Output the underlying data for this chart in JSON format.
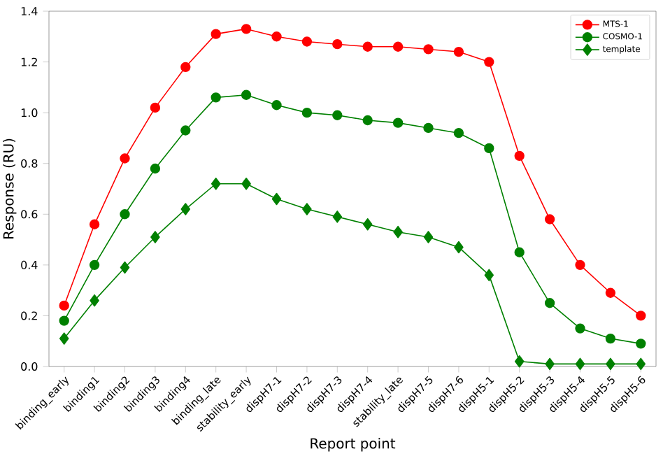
{
  "chart_data": {
    "type": "line",
    "xlabel": "Report point",
    "ylabel": "Response (RU)",
    "categories": [
      "binding_early",
      "binding1",
      "binding2",
      "binding3",
      "binding4",
      "binding_late",
      "stability_early",
      "dispH7-1",
      "dispH7-2",
      "dispH7-3",
      "dispH7-4",
      "stability_late",
      "dispH7-5",
      "dispH7-6",
      "dispH5-1",
      "dispH5-2",
      "dispH5-3",
      "dispH5-4",
      "dispH5-5",
      "dispH5-6"
    ],
    "series": [
      {
        "name": "MTS-1",
        "color": "#ff0000",
        "marker": "circle",
        "values": [
          0.24,
          0.56,
          0.82,
          1.02,
          1.18,
          1.31,
          1.33,
          1.3,
          1.28,
          1.27,
          1.26,
          1.26,
          1.25,
          1.24,
          1.2,
          0.83,
          0.58,
          0.4,
          0.29,
          0.2
        ]
      },
      {
        "name": "COSMO-1",
        "color": "#008000",
        "marker": "circle",
        "values": [
          0.18,
          0.4,
          0.6,
          0.78,
          0.93,
          1.06,
          1.07,
          1.03,
          1.0,
          0.99,
          0.97,
          0.96,
          0.94,
          0.92,
          0.86,
          0.45,
          0.25,
          0.15,
          0.11,
          0.09
        ]
      },
      {
        "name": "template",
        "color": "#008000",
        "marker": "diamond",
        "values": [
          0.11,
          0.26,
          0.39,
          0.51,
          0.62,
          0.72,
          0.72,
          0.66,
          0.62,
          0.59,
          0.56,
          0.53,
          0.51,
          0.47,
          0.36,
          0.02,
          0.01,
          0.01,
          0.01,
          0.01
        ]
      }
    ],
    "ylim": [
      0,
      1.4
    ],
    "yticks": [
      {
        "value": 0,
        "label": "0.0"
      },
      0.2,
      0.4,
      0.6,
      0.8,
      {
        "value": 1,
        "label": "1.0"
      },
      1.2,
      1.4
    ],
    "grid": false,
    "legend": "top right",
    "line_style": "solid"
  }
}
